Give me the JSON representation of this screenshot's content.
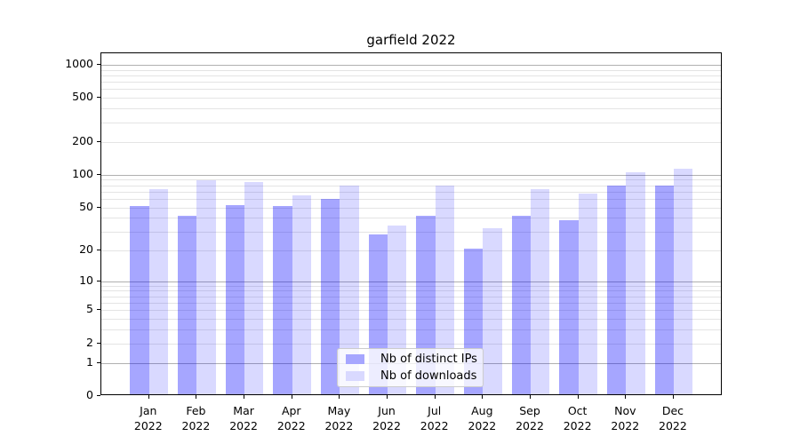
{
  "chart_data": {
    "type": "bar",
    "title": "garfield 2022",
    "categories": [
      "Jan",
      "Feb",
      "Mar",
      "Apr",
      "May",
      "Jun",
      "Jul",
      "Aug",
      "Sep",
      "Oct",
      "Nov",
      "Dec"
    ],
    "x_year": "2022",
    "series": [
      {
        "name": "Nb of distinct IPs",
        "color": "#0000ff",
        "alpha": 0.35,
        "values": [
          50,
          40,
          51,
          50,
          58,
          27,
          40,
          20,
          40,
          37,
          77,
          76
        ]
      },
      {
        "name": "Nb of downloads",
        "color": "#0000ff",
        "alpha": 0.15,
        "values": [
          71,
          85,
          82,
          62,
          76,
          33,
          76,
          31,
          71,
          65,
          102,
          110
        ]
      }
    ],
    "yscale": "log1p",
    "ylim": [
      0,
      1270
    ],
    "y_ticks": [
      1000,
      500,
      200,
      100,
      50,
      20,
      10,
      5,
      2,
      1,
      0
    ],
    "grid_major": [
      1,
      10,
      100,
      1000
    ],
    "grid": "on",
    "legend_position": "lower-center",
    "colors": {
      "bar_distinct_ips": "#a6a6ff",
      "bar_downloads": "#d9d9ff",
      "grid_major": "#b0b0b0",
      "grid_minor": "#e4e4e4",
      "spine": "#000000",
      "background": "#ffffff"
    }
  }
}
